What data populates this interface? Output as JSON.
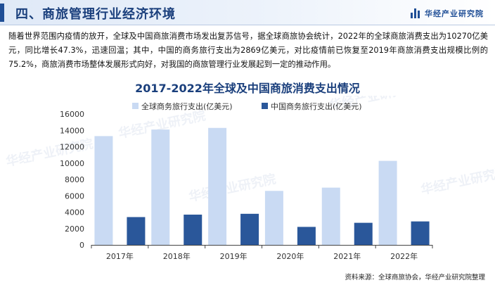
{
  "section_title": "四、商旅管理行业经济环境",
  "brand_name": "华经产业研究院",
  "intro_text": "随着世界范围内疫情的放开，全球及中国商旅消费市场发出复苏信号，据全球商旅协会统计，2022年的全球商旅消费支出为10270亿美元，同比增长47.3%，迅速回温；其中，中国的商务旅行支出为2869亿美元，对比疫情前已恢复至2019年商旅消费支出规模比例的75.2%，商旅消费市场整体发展形式向好，对我国的商旅管理行业发展起到一定的推动作用。",
  "source_text": "资料来源：全球商旅协会，华经产业研究院整理",
  "watermark_text": "华经产业研究院",
  "chart_data": {
    "type": "bar",
    "title": "2017-2022年全球及中国商旅消费支出情况",
    "categories": [
      "2017年",
      "2018年",
      "2019年",
      "2020年",
      "2021年",
      "2022年"
    ],
    "series": [
      {
        "name": "全球商务旅行支出(亿美元)",
        "color": "#c9daf3",
        "values": [
          13300,
          14100,
          14300,
          6600,
          7000,
          10270
        ]
      },
      {
        "name": "中国商务旅行支出(亿美元)",
        "color": "#2a579a",
        "values": [
          3400,
          3700,
          3800,
          2200,
          2700,
          2869
        ]
      }
    ],
    "ylim": [
      0,
      16000
    ],
    "yticks": [
      0,
      2000,
      4000,
      6000,
      8000,
      10000,
      12000,
      14000,
      16000
    ],
    "grid": false,
    "legend": "top-center"
  }
}
